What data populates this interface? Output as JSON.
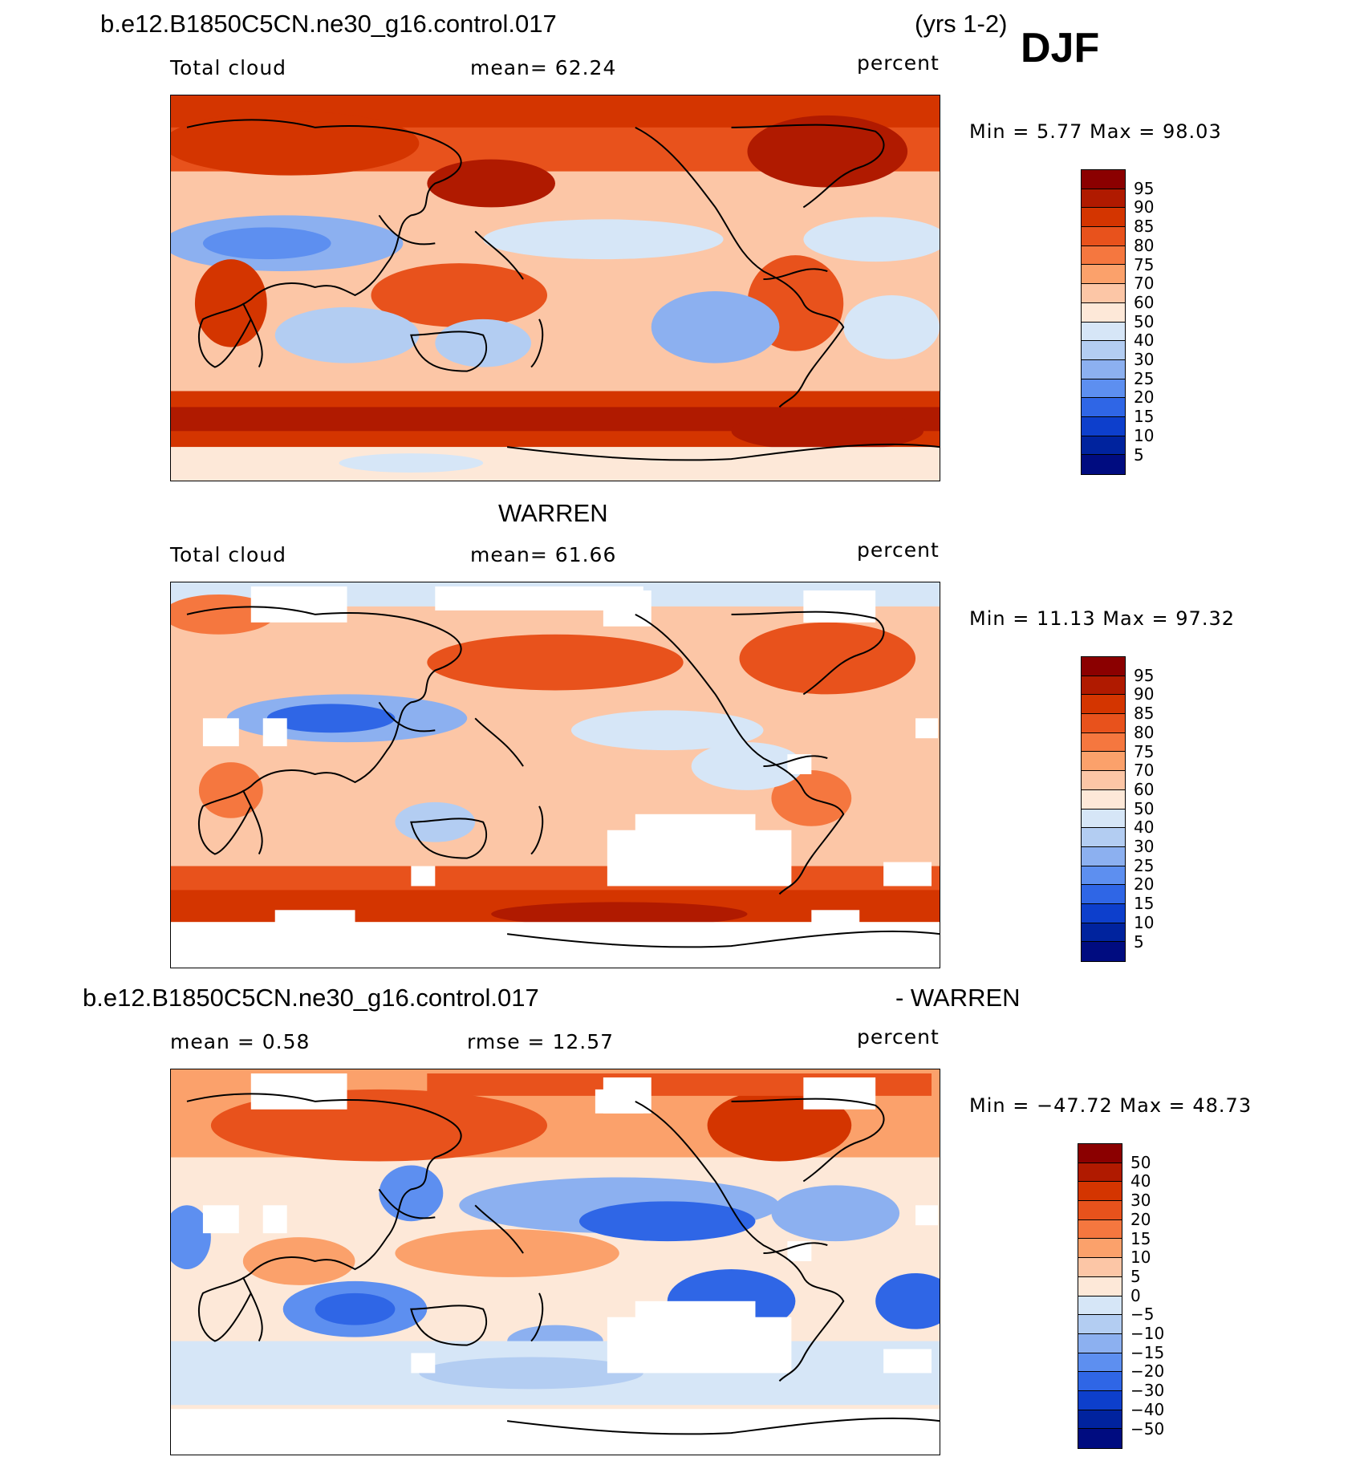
{
  "header": {
    "case": "b.e12.B1850C5CN.ne30_g16.control.017",
    "years": "(yrs 1-2)",
    "season": "DJF"
  },
  "panels": [
    {
      "heading": "",
      "variable": "Total cloud",
      "stat": "mean=   62.24",
      "units": "percent",
      "minmax": "Min =    5.77  Max =   98.03",
      "colorbar_labels": [
        "95",
        "90",
        "85",
        "80",
        "75",
        "70",
        "60",
        "50",
        "40",
        "30",
        "25",
        "20",
        "15",
        "10",
        "5"
      ]
    },
    {
      "heading": "WARREN",
      "variable": "Total cloud",
      "stat": "mean=   61.66",
      "units": "percent",
      "minmax": "Min =   11.13  Max =   97.32",
      "colorbar_labels": [
        "95",
        "90",
        "85",
        "80",
        "75",
        "70",
        "60",
        "50",
        "40",
        "30",
        "25",
        "20",
        "15",
        "10",
        "5"
      ]
    },
    {
      "heading_left": "b.e12.B1850C5CN.ne30_g16.control.017",
      "heading_right": "- WARREN",
      "variable": "mean =    0.58",
      "stat": "rmse =   12.57",
      "units": "percent",
      "minmax": "Min = −47.72  Max =   48.73",
      "colorbar_labels": [
        "50",
        "40",
        "30",
        "20",
        "15",
        "10",
        "5",
        "0",
        "−5",
        "−10",
        "−15",
        "−20",
        "−30",
        "−40",
        "−50"
      ]
    }
  ],
  "colors": {
    "abs_scale": [
      "#8b0000",
      "#b01a00",
      "#d43500",
      "#e8521c",
      "#f5773f",
      "#fba16b",
      "#fcc6a6",
      "#fde8d8",
      "#d6e6f7",
      "#b3cdf2",
      "#8cb0f0",
      "#5d8ff0",
      "#2f66e6",
      "#0d3fcc",
      "#00239e",
      "#000c80"
    ],
    "diff_scale": [
      "#8b0000",
      "#b01a00",
      "#d43500",
      "#e8521c",
      "#f5773f",
      "#fba16b",
      "#fcc6a6",
      "#fde8d8",
      "#d6e6f7",
      "#b3cdf2",
      "#8cb0f0",
      "#5d8ff0",
      "#2f66e6",
      "#0d3fcc",
      "#00239e",
      "#000c80"
    ]
  }
}
